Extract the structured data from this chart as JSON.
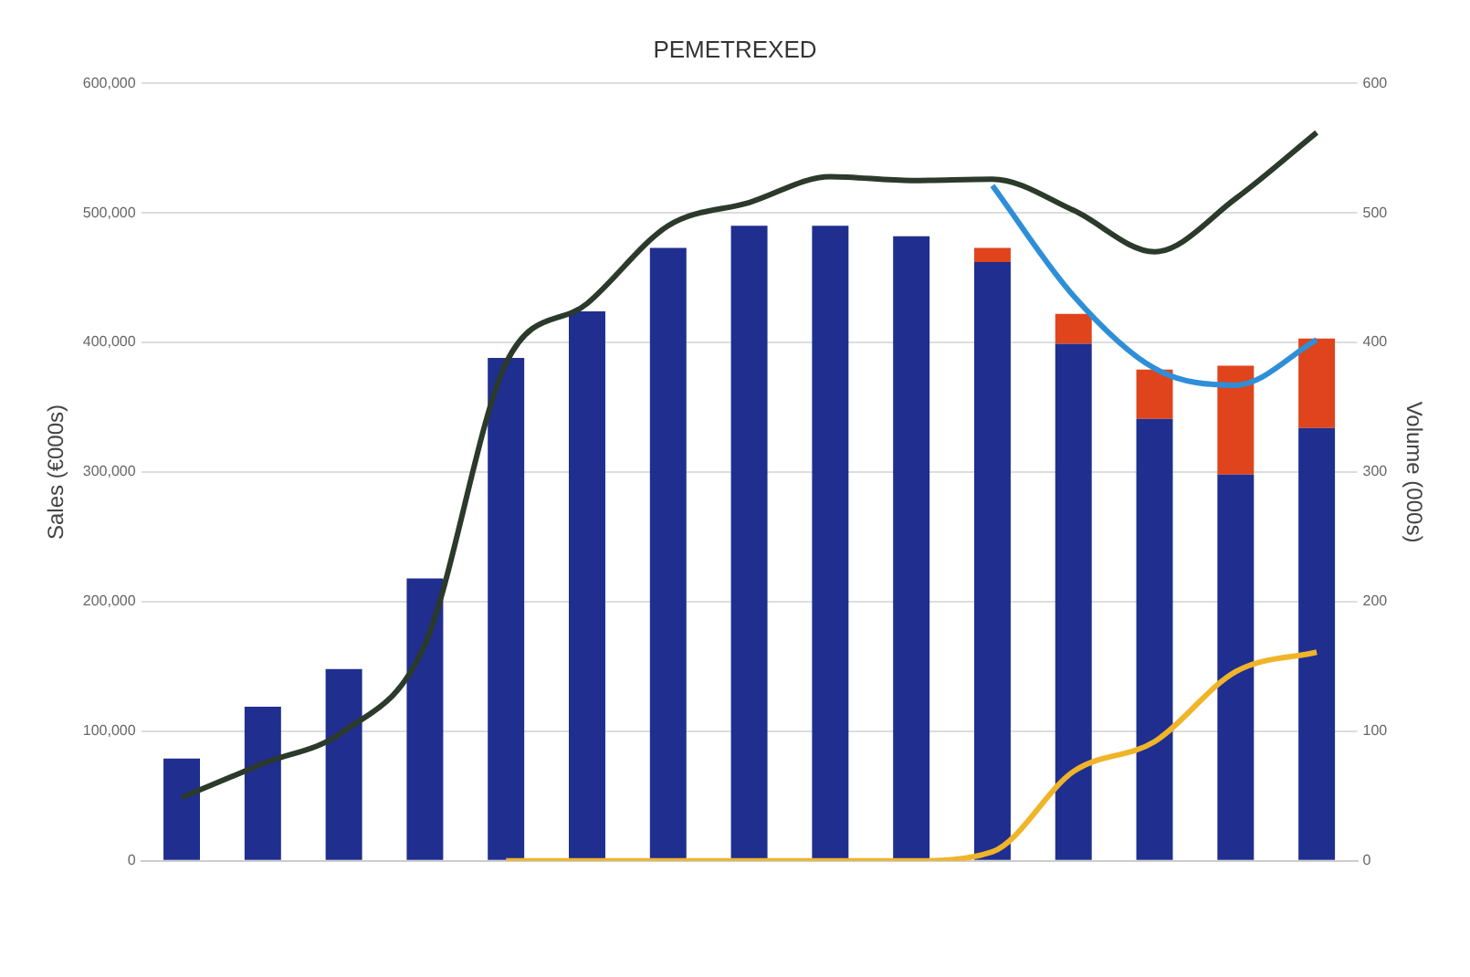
{
  "chart_data": {
    "type": "bar",
    "title": "PEMETREXED",
    "ylabel": "Sales (€000s)",
    "y2label": "Volume (000s)",
    "categories": [
      null,
      null,
      null,
      null,
      null,
      null,
      null,
      null,
      null,
      null,
      null,
      null,
      null,
      null,
      null
    ],
    "stacked": true,
    "grid": "y",
    "legend": false,
    "ylim": [
      0,
      600000
    ],
    "yticks": [
      0,
      {
        "value": 100000,
        "label": "100,000"
      },
      {
        "value": 200000,
        "label": "200,000"
      },
      {
        "value": 300000,
        "label": "300,000"
      },
      {
        "value": 400000,
        "label": "400,000"
      },
      {
        "value": 500000,
        "label": "500,000"
      },
      {
        "value": 600000,
        "label": "600,000"
      }
    ],
    "y2lim": [
      0,
      600
    ],
    "y2ticks": [
      0,
      100,
      200,
      300,
      400,
      500,
      600
    ],
    "series": [
      {
        "color": "#1f2e8f",
        "values": [
          79000,
          119000,
          148000,
          218000,
          388000,
          424000,
          473000,
          490000,
          490000,
          482000,
          462000,
          399000,
          341000,
          298000,
          334000
        ]
      },
      {
        "color": "#e0441c",
        "values": [
          null,
          null,
          null,
          null,
          null,
          null,
          null,
          null,
          null,
          null,
          11000,
          23000,
          38000,
          84000,
          69000
        ]
      },
      {
        "type": "line",
        "axis": "y2",
        "color": "#f0b429",
        "values": [
          null,
          null,
          null,
          null,
          0,
          0,
          0,
          0,
          0,
          0,
          7,
          69,
          92,
          146,
          161
        ]
      },
      {
        "type": "line",
        "axis": "y2",
        "color": "#2e8fd8",
        "values": [
          null,
          null,
          null,
          null,
          null,
          null,
          null,
          null,
          null,
          null,
          521,
          436,
          380,
          367,
          402
        ]
      },
      {
        "type": "line",
        "axis": "y2",
        "color": "#2b3a2b",
        "values": [
          49,
          75,
          100,
          167,
          384,
          430,
          490,
          508,
          528,
          525,
          526,
          502,
          470,
          511,
          562
        ]
      }
    ]
  }
}
